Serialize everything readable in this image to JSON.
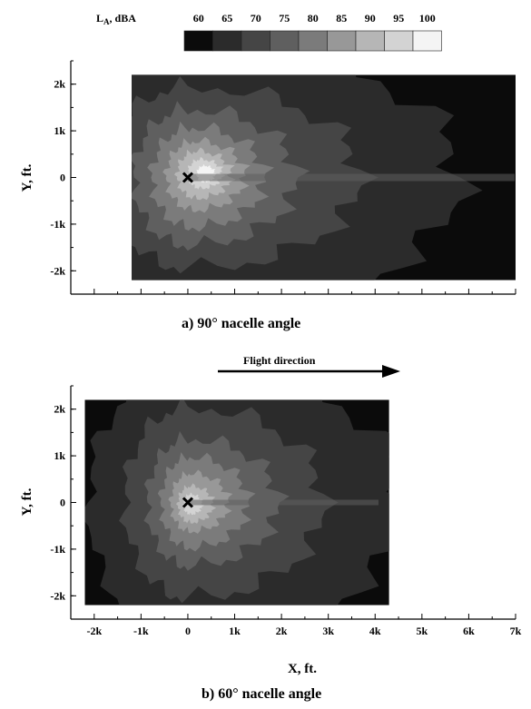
{
  "legend": {
    "label_main": "L",
    "label_sub": "A",
    "label_rest": ", dBA",
    "levels": [
      "60",
      "65",
      "70",
      "75",
      "80",
      "85",
      "90",
      "95",
      "100"
    ],
    "colors": [
      "#0b0b0b",
      "#2b2b2b",
      "#454545",
      "#5f5f5f",
      "#7b7b7b",
      "#989898",
      "#b6b6b6",
      "#d3d3d3",
      "#f4f4f4"
    ]
  },
  "flight_direction_label": "Flight direction",
  "chart_data": [
    {
      "type": "heatmap",
      "caption": "a)  90° nacelle angle",
      "ylabel": "Y, ft.",
      "xlabel": "",
      "xlim": [
        -2500,
        7000
      ],
      "ylim": [
        -2500,
        2500
      ],
      "yticks": [
        "2k",
        "1k",
        "0",
        "-1k",
        "-2k"
      ],
      "grid": false,
      "data_extent": {
        "x": [
          -1200,
          7000
        ],
        "y": [
          -2200,
          2200
        ]
      },
      "peak_marker": {
        "label": "x",
        "x": 0,
        "y": 0
      },
      "contour_levels_dBA": [
        60,
        65,
        70,
        75,
        80,
        85,
        90,
        95,
        100
      ]
    },
    {
      "type": "heatmap",
      "caption": "b)  60° nacelle angle",
      "ylabel": "Y, ft.",
      "xlabel": "X, ft.",
      "xlim": [
        -2500,
        7000
      ],
      "ylim": [
        -2500,
        2500
      ],
      "xticks": [
        "-2k",
        "-1k",
        "0",
        "1k",
        "2k",
        "3k",
        "4k",
        "5k",
        "6k",
        "7k"
      ],
      "yticks": [
        "2k",
        "1k",
        "0",
        "-1k",
        "-2k"
      ],
      "grid": false,
      "data_extent": {
        "x": [
          -2200,
          4300
        ],
        "y": [
          -2200,
          2200
        ]
      },
      "peak_marker": {
        "label": "x",
        "x": 0,
        "y": 0
      },
      "contour_levels_dBA": [
        60,
        65,
        70,
        75,
        80,
        85,
        90,
        95,
        100
      ]
    }
  ]
}
